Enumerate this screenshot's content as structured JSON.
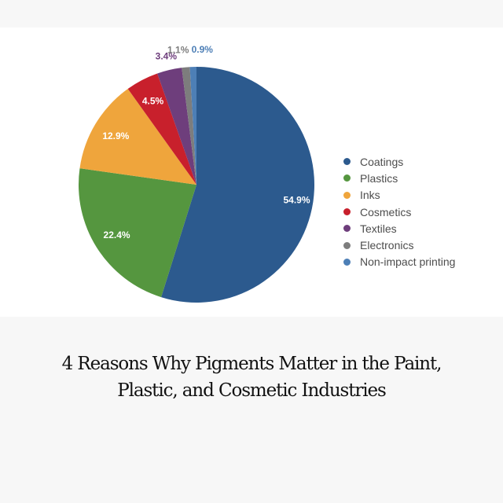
{
  "chart_data": {
    "type": "pie",
    "title": "",
    "slices": [
      {
        "label": "Coatings",
        "value": 54.9,
        "display": "54.9%",
        "color": "#2c5a8e"
      },
      {
        "label": "Plastics",
        "value": 22.4,
        "display": "22.4%",
        "color": "#55963f"
      },
      {
        "label": "Inks",
        "value": 12.9,
        "display": "12.9%",
        "color": "#efa53c"
      },
      {
        "label": "Cosmetics",
        "value": 4.5,
        "display": "4.5%",
        "color": "#c8202c"
      },
      {
        "label": "Textiles",
        "value": 3.4,
        "display": "3.4%",
        "color": "#6e3e7c"
      },
      {
        "label": "Electronics",
        "value": 1.1,
        "display": "1.1%",
        "color": "#7d7d7d"
      },
      {
        "label": "Non-impact printing",
        "value": 0.9,
        "display": "0.9%",
        "color": "#4d7fb6"
      }
    ],
    "legend_position": "right"
  },
  "caption": {
    "line1": "4 Reasons Why Pigments Matter in the Paint,",
    "line2": "Plastic, and Cosmetic Industries"
  }
}
